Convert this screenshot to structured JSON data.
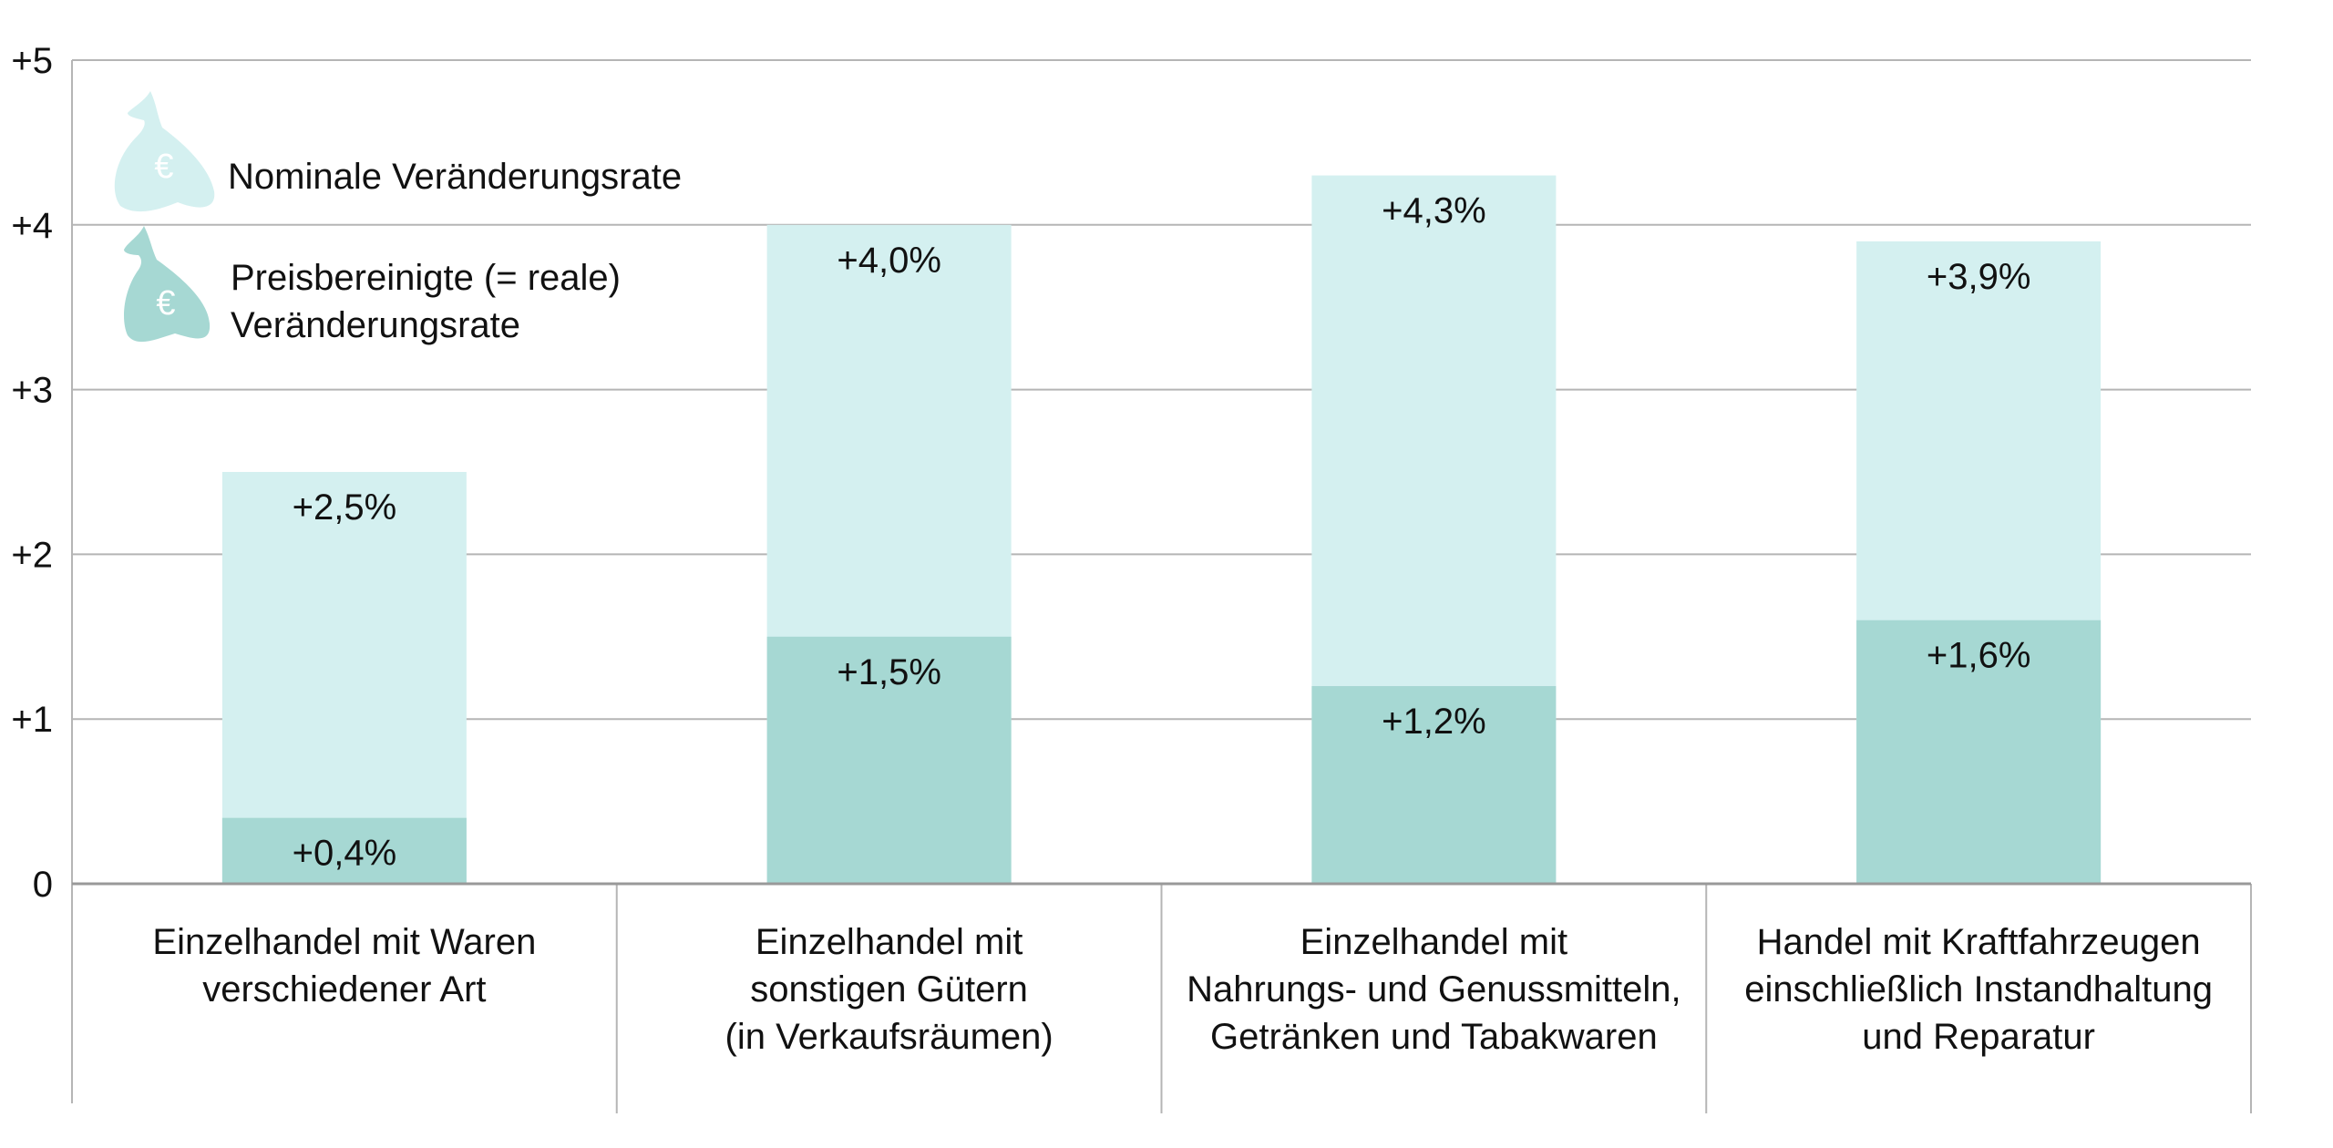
{
  "chart_data": {
    "type": "bar",
    "stacking": "overlay",
    "categories": [
      [
        "Einzelhandel mit Waren",
        "verschiedener Art"
      ],
      [
        "Einzelhandel mit",
        "sonstigen Gütern",
        "(in Verkaufsräumen)"
      ],
      [
        "Einzelhandel mit",
        "Nahrungs- und Genussmitteln,",
        "Getränken und Tabakwaren"
      ],
      [
        "Handel mit Kraftfahrzeugen",
        "einschließlich Instandhaltung",
        "und Reparatur"
      ]
    ],
    "series": [
      {
        "name": "Nominale Veränderungsrate",
        "values": [
          2.5,
          4.0,
          4.3,
          3.9
        ],
        "labels": [
          "+2,5%",
          "+4,0%",
          "+4,3%",
          "+3,9%"
        ],
        "color": "#d4f0f0"
      },
      {
        "name": "Preisbereinigte (= reale) Veränderungsrate",
        "name_lines": [
          "Preisbereinigte (= reale)",
          "Veränderungsrate"
        ],
        "values": [
          0.4,
          1.5,
          1.2,
          1.6
        ],
        "labels": [
          "+0,4%",
          "+1,5%",
          "+1,2%",
          "+1,6%"
        ],
        "color": "#a6d8d3"
      }
    ],
    "yticks": [
      "0",
      "+1",
      "+2",
      "+3",
      "+4",
      "+5"
    ],
    "ylim": [
      0,
      5
    ],
    "grid": true,
    "legend": "top-left",
    "legend_icon": "euro-money-bag-icon",
    "gridColor": "#b5b5b5"
  }
}
